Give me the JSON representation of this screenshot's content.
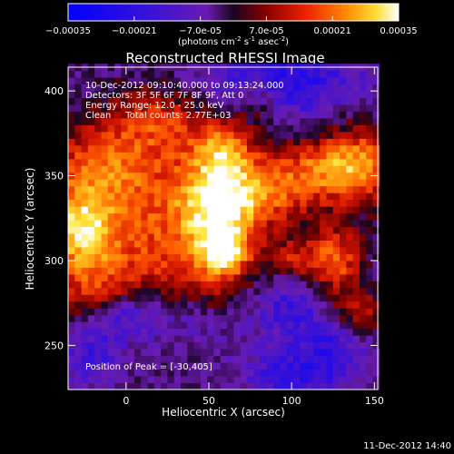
{
  "chart_data": {
    "type": "heatmap",
    "title": "Reconstructed RHESSI Image",
    "xlabel": "Heliocentric X (arcsec)",
    "ylabel": "Heliocentric Y (arcsec)",
    "xlim": [
      -35,
      152
    ],
    "ylim": [
      224,
      414
    ],
    "x_ticks": [
      0,
      50,
      100,
      150
    ],
    "y_ticks": [
      250,
      300,
      350,
      400
    ],
    "colorbar": {
      "range": [
        -0.00035,
        0.00035
      ],
      "tick_labels": [
        "-0.00035",
        "-0.00021",
        "-7.0e-05",
        "7.0e-05",
        "0.00021",
        "0.00035"
      ],
      "units_label": "(photons cm",
      "units_sup1": "-2",
      "units_mid": " s",
      "units_sup2": "-1",
      "units_mid2": " asec",
      "units_sup3": "-2",
      "units_close": ")"
    },
    "info_lines": [
      "10-Dec-2012 09:10:40.000 to 09:13:24.000",
      "Detectors: 3F 5F 6F 7F 8F 9F, Att 0",
      "Energy Range: 12.0 - 25.0 keV",
      "Clean     Total counts: 2.77E+03"
    ],
    "peak_label": "Position of Peak = [-30,405]",
    "peak": [
      -30,
      405
    ],
    "footer_date": "11-Dec-2012 14:40",
    "grid": false,
    "pixel_size_arcsec": 4,
    "colors": {
      "background": "#000000",
      "negative_min": "#0000ff",
      "negative_mid": "#6a1bb0",
      "zero": "#1a0520",
      "positive_low": "#b00000",
      "positive_mid": "#ff5500",
      "positive_high": "#ffdd33",
      "positive_max": "#ffffff"
    },
    "features": [
      {
        "x": 13,
        "y": 318,
        "sx": 38,
        "sy": 42,
        "a": 0.62
      },
      {
        "x": -28,
        "y": 318,
        "sx": 14,
        "sy": 18,
        "a": 0.78
      },
      {
        "x": -14,
        "y": 358,
        "sx": 22,
        "sy": 18,
        "a": 0.45
      },
      {
        "x": 55,
        "y": 332,
        "sx": 16,
        "sy": 34,
        "a": 0.75
      },
      {
        "x": 60,
        "y": 306,
        "sx": 10,
        "sy": 10,
        "a": 0.55
      },
      {
        "x": 82,
        "y": 336,
        "sx": 24,
        "sy": 12,
        "a": 0.55
      },
      {
        "x": 118,
        "y": 355,
        "sx": 30,
        "sy": 12,
        "a": 0.62
      },
      {
        "x": 140,
        "y": 358,
        "sx": 16,
        "sy": 20,
        "a": 0.5
      },
      {
        "x": 126,
        "y": 300,
        "sx": 12,
        "sy": 14,
        "a": 0.7
      },
      {
        "x": 100,
        "y": 300,
        "sx": 12,
        "sy": 10,
        "a": 0.45
      },
      {
        "x": 20,
        "y": 385,
        "sx": 18,
        "sy": 14,
        "a": 0.42
      },
      {
        "x": 140,
        "y": 270,
        "sx": 12,
        "sy": 10,
        "a": 0.48
      },
      {
        "x": 60,
        "y": 365,
        "sx": 10,
        "sy": 10,
        "a": 0.42
      },
      {
        "x": 80,
        "y": 395,
        "sx": 10,
        "sy": 10,
        "a": 0.35
      },
      {
        "x": -15,
        "y": 282,
        "sx": 18,
        "sy": 12,
        "a": 0.3
      },
      {
        "x": 100,
        "y": 233,
        "sx": 20,
        "sy": 10,
        "a": -0.45
      },
      {
        "x": -20,
        "y": 245,
        "sx": 14,
        "sy": 14,
        "a": -0.38
      },
      {
        "x": 90,
        "y": 405,
        "sx": 35,
        "sy": 14,
        "a": -0.55
      },
      {
        "x": 100,
        "y": 275,
        "sx": 16,
        "sy": 14,
        "a": -0.4
      },
      {
        "x": 30,
        "y": 265,
        "sx": 30,
        "sy": 14,
        "a": -0.35
      },
      {
        "x": 125,
        "y": 250,
        "sx": 14,
        "sy": 12,
        "a": -0.38
      },
      {
        "x": 0,
        "y": 270,
        "sx": 12,
        "sy": 10,
        "a": -0.4
      }
    ]
  }
}
